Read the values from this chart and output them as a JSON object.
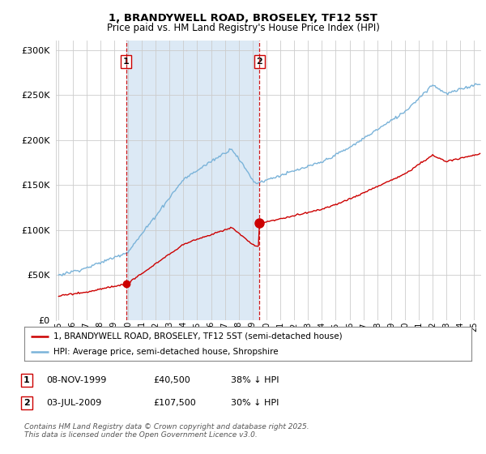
{
  "title1": "1, BRANDYWELL ROAD, BROSELEY, TF12 5ST",
  "title2": "Price paid vs. HM Land Registry's House Price Index (HPI)",
  "bg_color": "#ffffff",
  "plot_bg_color": "#ffffff",
  "shade_color": "#dce9f5",
  "sale1_date_num": 1999.86,
  "sale1_price": 40500,
  "sale2_date_num": 2009.5,
  "sale2_price": 107500,
  "legend_line1": "1, BRANDYWELL ROAD, BROSELEY, TF12 5ST (semi-detached house)",
  "legend_line2": "HPI: Average price, semi-detached house, Shropshire",
  "table_row1": [
    "1",
    "08-NOV-1999",
    "£40,500",
    "38% ↓ HPI"
  ],
  "table_row2": [
    "2",
    "03-JUL-2009",
    "£107,500",
    "30% ↓ HPI"
  ],
  "footer": "Contains HM Land Registry data © Crown copyright and database right 2025.\nThis data is licensed under the Open Government Licence v3.0.",
  "hpi_color": "#7ab3d9",
  "price_color": "#cc0000",
  "vline_color": "#cc0000",
  "grid_color": "#cccccc",
  "ylim": [
    0,
    310000
  ],
  "yticks": [
    0,
    50000,
    100000,
    150000,
    200000,
    250000,
    300000
  ],
  "xlim": [
    1994.8,
    2025.5
  ],
  "xtick_start": 1995,
  "xtick_end": 2025
}
